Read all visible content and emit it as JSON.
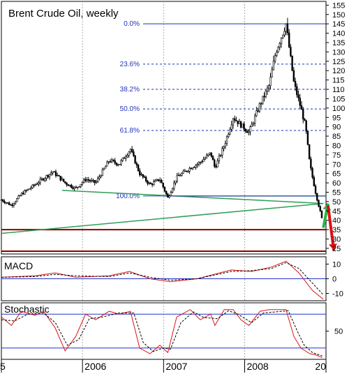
{
  "chart_data": [
    {
      "type": "candlestick",
      "title": "Brent Crude Oil, weekly",
      "y_ticks": [
        25,
        30,
        35,
        40,
        45,
        50,
        55,
        60,
        65,
        70,
        75,
        80,
        85,
        90,
        95,
        100,
        105,
        110,
        115,
        120,
        125,
        130,
        135,
        140,
        145,
        150,
        155
      ],
      "ylim": [
        22,
        157
      ],
      "x_ticks": [
        "5",
        "2006",
        "2007",
        "2008",
        "20"
      ],
      "xlim": [
        "2005-01-01",
        "2009-01-01"
      ],
      "fibonacci_levels": [
        {
          "label": "0.0%",
          "value": 145
        },
        {
          "label": "23.6%",
          "value": 123.5
        },
        {
          "label": "38.2%",
          "value": 110
        },
        {
          "label": "50.0%",
          "value": 99.5
        },
        {
          "label": "61.8%",
          "value": 88
        },
        {
          "label": "100.0%",
          "value": 53
        }
      ],
      "price_path": [
        {
          "date": "2005-01-01",
          "price": 51
        },
        {
          "date": "2005-02-15",
          "price": 48
        },
        {
          "date": "2005-04-01",
          "price": 54
        },
        {
          "date": "2005-06-01",
          "price": 59
        },
        {
          "date": "2005-08-20",
          "price": 66
        },
        {
          "date": "2005-10-15",
          "price": 60
        },
        {
          "date": "2005-12-01",
          "price": 57
        },
        {
          "date": "2006-01-15",
          "price": 62
        },
        {
          "date": "2006-03-01",
          "price": 60
        },
        {
          "date": "2006-05-01",
          "price": 72
        },
        {
          "date": "2006-06-15",
          "price": 70
        },
        {
          "date": "2006-08-05",
          "price": 78
        },
        {
          "date": "2006-09-15",
          "price": 65
        },
        {
          "date": "2006-11-01",
          "price": 59
        },
        {
          "date": "2006-12-15",
          "price": 62
        },
        {
          "date": "2007-01-20",
          "price": 52
        },
        {
          "date": "2007-03-01",
          "price": 63
        },
        {
          "date": "2007-05-01",
          "price": 68
        },
        {
          "date": "2007-06-15",
          "price": 71
        },
        {
          "date": "2007-08-01",
          "price": 76
        },
        {
          "date": "2007-08-20",
          "price": 68
        },
        {
          "date": "2007-10-01",
          "price": 80
        },
        {
          "date": "2007-11-10",
          "price": 95
        },
        {
          "date": "2007-12-15",
          "price": 91
        },
        {
          "date": "2008-01-20",
          "price": 87
        },
        {
          "date": "2008-03-10",
          "price": 102
        },
        {
          "date": "2008-04-20",
          "price": 112
        },
        {
          "date": "2008-05-20",
          "price": 130
        },
        {
          "date": "2008-07-05",
          "price": 145
        },
        {
          "date": "2008-08-10",
          "price": 113
        },
        {
          "date": "2008-09-10",
          "price": 100
        },
        {
          "date": "2008-10-01",
          "price": 90
        },
        {
          "date": "2008-10-20",
          "price": 70
        },
        {
          "date": "2008-11-15",
          "price": 55
        },
        {
          "date": "2008-12-15",
          "price": 40
        }
      ],
      "trendlines": [
        {
          "color": "#2f9e57",
          "points": [
            {
              "date": "2005-10-01",
              "price": 56
            },
            {
              "date": "2008-12-20",
              "price": 49
            }
          ]
        },
        {
          "color": "#2f9e57",
          "points": [
            {
              "date": "2005-01-01",
              "price": 33
            },
            {
              "date": "2008-12-20",
              "price": 49
            }
          ]
        },
        {
          "color": "#3a5fa0",
          "points": [
            {
              "date": "2007-01-01",
              "price": 53
            },
            {
              "date": "2009-01-01",
              "price": 53
            }
          ]
        }
      ],
      "support_lines": [
        {
          "color": "#8b0000",
          "price": 35
        },
        {
          "color": "#8b0000",
          "price": 23.5
        }
      ],
      "projection_arrows": [
        {
          "color": "#2db34a",
          "from": {
            "date": "2008-12-20",
            "price": 36
          },
          "to": {
            "date": "2009-01-10",
            "price": 49
          }
        },
        {
          "color": "#dd1111",
          "from": {
            "date": "2009-01-10",
            "price": 48
          },
          "to": {
            "date": "2009-02-05",
            "price": 24
          }
        }
      ]
    },
    {
      "type": "line",
      "title": "MACD",
      "y_ticks": [
        10,
        0,
        -10
      ],
      "ylim": [
        -15,
        15
      ],
      "series": [
        {
          "color": "#dd1111",
          "values": [
            {
              "date": "2005-01-01",
              "v": 1
            },
            {
              "date": "2005-06-01",
              "v": 2
            },
            {
              "date": "2005-09-01",
              "v": 4
            },
            {
              "date": "2005-12-01",
              "v": 1
            },
            {
              "date": "2006-05-01",
              "v": 2
            },
            {
              "date": "2006-08-01",
              "v": 5
            },
            {
              "date": "2006-11-01",
              "v": 0
            },
            {
              "date": "2007-02-01",
              "v": -2
            },
            {
              "date": "2007-06-01",
              "v": 0
            },
            {
              "date": "2007-11-01",
              "v": 6
            },
            {
              "date": "2008-02-01",
              "v": 5
            },
            {
              "date": "2008-05-01",
              "v": 8
            },
            {
              "date": "2008-07-05",
              "v": 12
            },
            {
              "date": "2008-09-01",
              "v": 4
            },
            {
              "date": "2008-11-01",
              "v": -8
            },
            {
              "date": "2008-12-20",
              "v": -14
            }
          ]
        },
        {
          "color": "#000000",
          "dashed": true,
          "values": [
            {
              "date": "2005-01-01",
              "v": 1
            },
            {
              "date": "2005-06-01",
              "v": 1.5
            },
            {
              "date": "2005-09-01",
              "v": 3
            },
            {
              "date": "2005-12-01",
              "v": 2
            },
            {
              "date": "2006-05-01",
              "v": 1.5
            },
            {
              "date": "2006-08-01",
              "v": 4
            },
            {
              "date": "2006-11-01",
              "v": 1
            },
            {
              "date": "2007-02-01",
              "v": -1
            },
            {
              "date": "2007-06-01",
              "v": 0
            },
            {
              "date": "2007-11-01",
              "v": 5
            },
            {
              "date": "2008-02-01",
              "v": 5.5
            },
            {
              "date": "2008-05-01",
              "v": 7
            },
            {
              "date": "2008-07-05",
              "v": 11
            },
            {
              "date": "2008-09-01",
              "v": 7
            },
            {
              "date": "2008-11-01",
              "v": -3
            },
            {
              "date": "2008-12-20",
              "v": -11
            }
          ]
        }
      ]
    },
    {
      "type": "line",
      "title": "Stochastic",
      "y_ticks": [
        50
      ],
      "ylim": [
        0,
        100
      ],
      "reference_lines": [
        80,
        20
      ],
      "series": [
        {
          "color": "#dd1111",
          "values": [
            {
              "date": "2005-01-01",
              "v": 75
            },
            {
              "date": "2005-02-15",
              "v": 60
            },
            {
              "date": "2005-04-01",
              "v": 85
            },
            {
              "date": "2005-06-01",
              "v": 78
            },
            {
              "date": "2005-07-10",
              "v": 85
            },
            {
              "date": "2005-09-01",
              "v": 55
            },
            {
              "date": "2005-10-15",
              "v": 15
            },
            {
              "date": "2005-12-01",
              "v": 40
            },
            {
              "date": "2006-01-15",
              "v": 80
            },
            {
              "date": "2006-03-01",
              "v": 70
            },
            {
              "date": "2006-05-01",
              "v": 85
            },
            {
              "date": "2006-06-15",
              "v": 80
            },
            {
              "date": "2006-08-05",
              "v": 85
            },
            {
              "date": "2006-09-15",
              "v": 20
            },
            {
              "date": "2006-11-01",
              "v": 10
            },
            {
              "date": "2006-12-15",
              "v": 25
            },
            {
              "date": "2007-01-20",
              "v": 12
            },
            {
              "date": "2007-03-01",
              "v": 75
            },
            {
              "date": "2007-05-01",
              "v": 88
            },
            {
              "date": "2007-06-15",
              "v": 70
            },
            {
              "date": "2007-08-01",
              "v": 80
            },
            {
              "date": "2007-08-20",
              "v": 60
            },
            {
              "date": "2007-10-01",
              "v": 88
            },
            {
              "date": "2007-11-10",
              "v": 88
            },
            {
              "date": "2007-12-15",
              "v": 70
            },
            {
              "date": "2008-01-20",
              "v": 60
            },
            {
              "date": "2008-03-10",
              "v": 85
            },
            {
              "date": "2008-04-20",
              "v": 88
            },
            {
              "date": "2008-05-20",
              "v": 88
            },
            {
              "date": "2008-07-05",
              "v": 88
            },
            {
              "date": "2008-08-10",
              "v": 40
            },
            {
              "date": "2008-09-10",
              "v": 20
            },
            {
              "date": "2008-10-20",
              "v": 10
            },
            {
              "date": "2008-11-15",
              "v": 8
            },
            {
              "date": "2008-12-15",
              "v": 3
            }
          ]
        },
        {
          "color": "#000000",
          "dashed": true,
          "values": [
            {
              "date": "2005-01-01",
              "v": 70
            },
            {
              "date": "2005-03-01",
              "v": 68
            },
            {
              "date": "2005-05-01",
              "v": 80
            },
            {
              "date": "2005-07-10",
              "v": 82
            },
            {
              "date": "2005-09-01",
              "v": 65
            },
            {
              "date": "2005-10-25",
              "v": 25
            },
            {
              "date": "2005-12-15",
              "v": 35
            },
            {
              "date": "2006-02-01",
              "v": 72
            },
            {
              "date": "2006-04-01",
              "v": 75
            },
            {
              "date": "2006-06-15",
              "v": 82
            },
            {
              "date": "2006-08-20",
              "v": 82
            },
            {
              "date": "2006-10-01",
              "v": 30
            },
            {
              "date": "2006-11-15",
              "v": 14
            },
            {
              "date": "2007-01-01",
              "v": 20
            },
            {
              "date": "2007-02-01",
              "v": 18
            },
            {
              "date": "2007-03-20",
              "v": 65
            },
            {
              "date": "2007-05-15",
              "v": 84
            },
            {
              "date": "2007-07-01",
              "v": 74
            },
            {
              "date": "2007-09-01",
              "v": 72
            },
            {
              "date": "2007-10-20",
              "v": 86
            },
            {
              "date": "2007-12-01",
              "v": 80
            },
            {
              "date": "2008-02-01",
              "v": 65
            },
            {
              "date": "2008-03-25",
              "v": 82
            },
            {
              "date": "2008-07-15",
              "v": 86
            },
            {
              "date": "2008-08-25",
              "v": 50
            },
            {
              "date": "2008-09-25",
              "v": 25
            },
            {
              "date": "2008-11-01",
              "v": 12
            },
            {
              "date": "2008-12-15",
              "v": 6
            }
          ]
        }
      ]
    }
  ]
}
